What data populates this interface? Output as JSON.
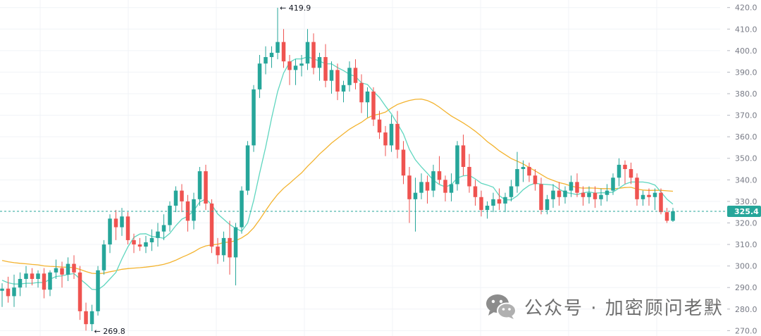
{
  "chart_data": {
    "type": "candlestick",
    "y_axis_ticks": [
      270,
      280,
      290,
      300,
      310,
      320,
      330,
      340,
      350,
      360,
      370,
      380,
      390,
      400,
      410,
      420
    ],
    "y_range": [
      267.5,
      423.5
    ],
    "last_price": "325.4",
    "high_label": "419.9",
    "low_label": "269.8",
    "colors": {
      "up": "#26a69a",
      "down": "#ef5350",
      "ma_fast": "#5fd6bf",
      "ma_slow": "#f3b32f",
      "price_line": "#26a69a",
      "grid": "#f0f3f7",
      "axis_text": "#787b86"
    },
    "candles": [
      [
        288.5,
        292,
        281,
        289.5
      ],
      [
        289.5,
        295,
        283,
        286
      ],
      [
        286,
        296,
        281,
        290
      ],
      [
        290,
        297,
        286,
        294
      ],
      [
        294,
        300,
        290,
        296.5
      ],
      [
        296.5,
        299,
        291,
        294
      ],
      [
        294,
        298,
        290,
        296.5
      ],
      [
        296.5,
        299,
        285,
        289
      ],
      [
        289,
        298,
        286,
        297
      ],
      [
        297,
        303,
        294,
        299
      ],
      [
        299,
        302,
        290,
        296
      ],
      [
        296,
        304,
        293,
        301
      ],
      [
        301,
        305,
        294,
        297
      ],
      [
        297,
        300,
        275,
        279
      ],
      [
        279,
        283,
        270,
        273
      ],
      [
        273,
        282,
        269.8,
        279
      ],
      [
        279,
        300,
        277,
        298
      ],
      [
        298,
        312,
        296,
        310
      ],
      [
        310,
        324,
        306,
        322
      ],
      [
        322,
        326,
        312,
        318
      ],
      [
        318,
        327,
        314,
        323
      ],
      [
        323,
        325,
        310,
        312
      ],
      [
        312,
        315,
        306,
        310
      ],
      [
        310,
        313,
        307,
        309
      ],
      [
        309,
        314,
        306,
        311
      ],
      [
        311,
        317,
        307,
        313
      ],
      [
        313,
        320,
        309,
        316
      ],
      [
        316,
        324,
        312,
        319
      ],
      [
        319,
        330,
        316,
        328
      ],
      [
        328,
        337,
        325,
        335
      ],
      [
        335,
        338,
        325,
        330
      ],
      [
        330,
        333,
        316,
        321
      ],
      [
        321,
        334,
        317,
        331
      ],
      [
        331,
        346,
        328,
        344
      ],
      [
        344,
        347,
        326,
        329
      ],
      [
        329,
        331,
        306,
        309
      ],
      [
        309,
        313,
        301,
        305
      ],
      [
        305,
        316,
        302,
        313
      ],
      [
        313,
        321,
        296,
        304
      ],
      [
        304,
        320,
        291,
        318
      ],
      [
        318,
        337,
        315,
        335
      ],
      [
        335,
        358,
        333,
        356
      ],
      [
        356,
        384,
        353,
        382
      ],
      [
        382,
        398,
        378,
        394
      ],
      [
        394,
        402,
        389,
        397
      ],
      [
        397,
        402,
        392,
        399
      ],
      [
        399,
        419.9,
        396,
        404
      ],
      [
        404,
        410,
        392,
        395
      ],
      [
        395,
        398,
        384,
        391
      ],
      [
        391,
        396,
        384,
        393
      ],
      [
        393,
        398,
        388,
        394
      ],
      [
        394,
        410,
        391,
        404
      ],
      [
        404,
        408,
        389,
        392
      ],
      [
        392,
        399,
        386,
        397
      ],
      [
        397,
        403,
        383,
        386
      ],
      [
        386,
        395,
        380,
        391
      ],
      [
        391,
        394,
        377,
        381
      ],
      [
        381,
        386,
        376,
        384
      ],
      [
        384,
        395,
        381,
        392
      ],
      [
        392,
        396,
        382,
        385
      ],
      [
        385,
        389,
        371,
        376
      ],
      [
        376,
        383,
        369,
        381
      ],
      [
        381,
        383,
        365,
        368
      ],
      [
        368,
        372,
        359,
        362
      ],
      [
        362,
        365,
        351,
        356
      ],
      [
        356,
        370,
        353,
        366
      ],
      [
        366,
        372,
        350,
        354
      ],
      [
        354,
        358,
        338,
        342
      ],
      [
        342,
        346,
        320,
        331
      ],
      [
        331,
        341,
        316,
        334
      ],
      [
        334,
        343,
        331,
        339
      ],
      [
        339,
        342,
        329,
        335
      ],
      [
        335,
        347,
        332,
        344
      ],
      [
        344,
        351,
        338,
        340
      ],
      [
        340,
        342,
        330,
        334
      ],
      [
        334,
        343,
        330,
        338
      ],
      [
        338,
        358,
        335,
        356
      ],
      [
        356,
        361,
        342,
        346
      ],
      [
        346,
        352,
        334,
        337
      ],
      [
        337,
        340,
        328,
        332
      ],
      [
        332,
        335,
        323,
        326
      ],
      [
        326,
        330,
        322,
        328
      ],
      [
        328,
        334,
        325,
        331
      ],
      [
        331,
        336,
        326,
        329
      ],
      [
        329,
        334,
        325,
        332
      ],
      [
        332,
        340,
        330,
        337
      ],
      [
        337,
        353,
        334,
        345
      ],
      [
        345,
        349,
        339,
        346
      ],
      [
        346,
        348,
        339,
        342
      ],
      [
        342,
        345,
        335,
        338
      ],
      [
        338,
        341,
        324,
        326
      ],
      [
        326,
        333,
        324,
        331
      ],
      [
        331,
        338,
        327,
        335
      ],
      [
        335,
        339,
        328,
        332
      ],
      [
        332,
        337,
        329,
        335
      ],
      [
        335,
        342,
        332,
        339
      ],
      [
        339,
        343,
        332,
        334
      ],
      [
        334,
        337,
        328,
        332
      ],
      [
        332,
        337,
        329,
        334
      ],
      [
        334,
        337,
        327,
        331
      ],
      [
        331,
        336,
        328,
        333
      ],
      [
        333,
        338,
        330,
        335
      ],
      [
        335,
        343,
        333,
        341
      ],
      [
        341,
        350,
        337,
        347
      ],
      [
        347,
        349,
        338,
        345
      ],
      [
        345,
        348,
        338,
        341
      ],
      [
        341,
        343,
        328,
        331
      ],
      [
        331,
        335,
        328,
        333
      ],
      [
        333,
        336,
        328,
        332
      ],
      [
        332,
        336,
        326,
        334
      ],
      [
        334,
        336,
        324,
        325
      ],
      [
        325,
        327,
        320,
        321
      ],
      [
        321,
        327,
        320.5,
        325.4
      ]
    ]
  },
  "watermark": {
    "text": "公众号 · 加密顾问老默",
    "logo_icon": "wechat-logo"
  }
}
